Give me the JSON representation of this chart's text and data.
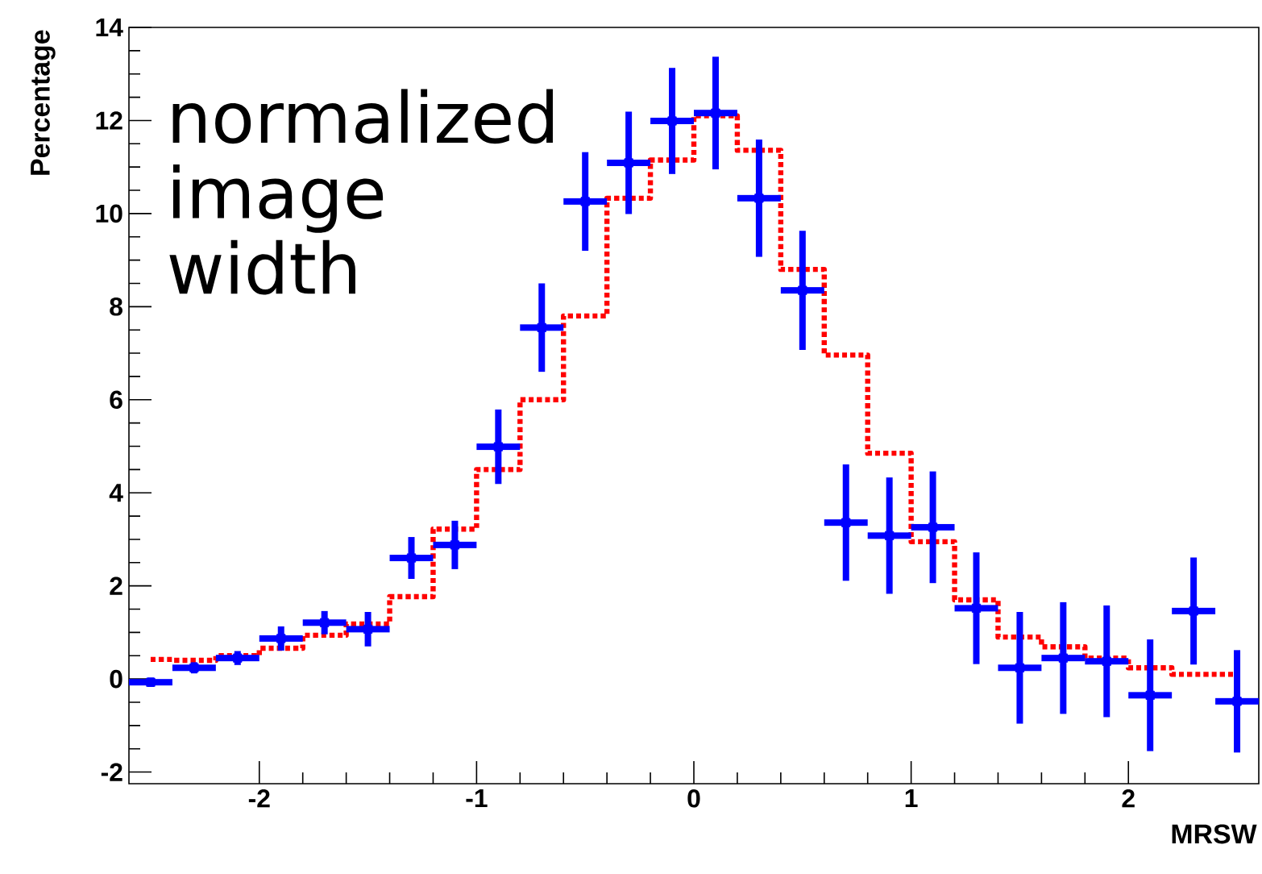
{
  "chart_data": {
    "type": "scatter",
    "annotations": [
      "normalized image width"
    ],
    "xlabel": "MRSW",
    "ylabel": "Percentage",
    "xlim": [
      -2.6,
      2.6
    ],
    "ylim": [
      -2.25,
      14
    ],
    "xticks": [
      -2,
      -1,
      0,
      1,
      2
    ],
    "yticks": [
      -2,
      0,
      2,
      4,
      6,
      8,
      10,
      12,
      14
    ],
    "series": [
      {
        "type": "step",
        "color": "#ff0000",
        "line_style": "dotted",
        "x": [
          -2.5,
          -2.3,
          -2.1,
          -1.9,
          -1.7,
          -1.5,
          -1.3,
          -1.1,
          -0.9,
          -0.7,
          -0.5,
          -0.3,
          -0.1,
          0.1,
          0.3,
          0.5,
          0.7,
          0.9,
          1.1,
          1.3,
          1.5,
          1.7,
          1.9,
          2.1,
          2.3,
          2.5
        ],
        "values": [
          0.42,
          0.4,
          0.5,
          0.66,
          0.94,
          1.18,
          1.77,
          3.22,
          4.5,
          6.0,
          7.8,
          10.33,
          11.15,
          12.1,
          11.36,
          8.8,
          6.96,
          4.85,
          2.95,
          1.7,
          0.9,
          0.69,
          0.45,
          0.24,
          0.1,
          0.1
        ]
      },
      {
        "color": "#0000ff",
        "marker": "square",
        "x": [
          -2.5,
          -2.3,
          -2.1,
          -1.9,
          -1.7,
          -1.5,
          -1.3,
          -1.1,
          -0.9,
          -0.7,
          -0.5,
          -0.3,
          -0.1,
          0.1,
          0.3,
          0.5,
          0.7,
          0.9,
          1.1,
          1.3,
          1.5,
          1.7,
          1.9,
          2.1,
          2.3,
          2.5
        ],
        "values": [
          -0.07,
          0.24,
          0.45,
          0.87,
          1.21,
          1.07,
          2.6,
          2.88,
          4.99,
          7.55,
          10.26,
          11.09,
          11.99,
          12.16,
          10.33,
          8.35,
          3.36,
          3.08,
          3.26,
          1.52,
          0.24,
          0.45,
          0.38,
          -0.35,
          1.46,
          -0.48
        ],
        "errors": [
          0.1,
          0.12,
          0.15,
          0.26,
          0.25,
          0.37,
          0.45,
          0.52,
          0.8,
          0.95,
          1.06,
          1.1,
          1.14,
          1.21,
          1.26,
          1.28,
          1.25,
          1.25,
          1.2,
          1.2,
          1.2,
          1.2,
          1.2,
          1.2,
          1.15,
          1.1
        ],
        "xerrors": [
          0.1,
          0.1,
          0.1,
          0.1,
          0.1,
          0.1,
          0.1,
          0.1,
          0.1,
          0.1,
          0.1,
          0.1,
          0.1,
          0.1,
          0.1,
          0.1,
          0.1,
          0.1,
          0.1,
          0.1,
          0.1,
          0.1,
          0.1,
          0.1,
          0.1,
          0.1
        ]
      }
    ]
  }
}
